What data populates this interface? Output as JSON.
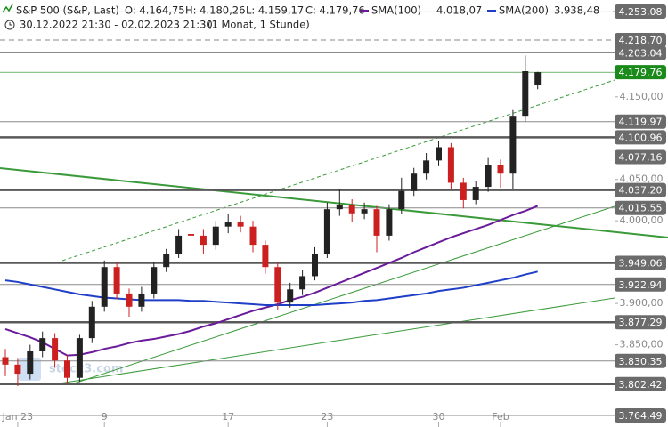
{
  "header": {
    "symbol": "S&P 500 (S&P, Last)",
    "open": "O: 4.164,75",
    "high": "H: 4.180,26",
    "low": "L: 4.159,17",
    "close": "C: 4.179,76",
    "range": "30.12.2022 21:30 - 02.02.2023 21:30",
    "period": "(1 Monat, 1 Stunde)",
    "watermark": "stock3.com"
  },
  "chart_data": {
    "type": "candlestick",
    "categories": [
      null,
      "Jan 23",
      null,
      null,
      null,
      null,
      null,
      null,
      "9",
      null,
      null,
      null,
      null,
      null,
      null,
      null,
      null,
      null,
      "17",
      null,
      null,
      null,
      null,
      null,
      null,
      null,
      "23",
      null,
      null,
      null,
      null,
      null,
      null,
      null,
      null,
      "30",
      null,
      null,
      null,
      null,
      "Feb",
      null,
      null,
      null
    ],
    "open": [
      3835,
      3826,
      3815,
      3842,
      3858,
      3831,
      3810,
      3858,
      3896,
      3944,
      3912,
      3896,
      3912,
      3944,
      3960,
      3984,
      3982,
      3971,
      3993,
      3998,
      3993,
      3971,
      3944,
      3901,
      3917,
      3933,
      3960,
      4014,
      4019,
      4009,
      4014,
      3982,
      4014,
      4036,
      4057,
      4073,
      4089,
      4046,
      4025,
      4041,
      4068,
      4057,
      4127,
      4164.75
    ],
    "high": [
      3845,
      3834,
      3850,
      3866,
      3864,
      3838,
      3862,
      3903,
      3952,
      3950,
      3918,
      3920,
      3950,
      3966,
      3990,
      3993,
      3990,
      4000,
      4008,
      4006,
      4000,
      3976,
      3950,
      3925,
      3940,
      3968,
      4022,
      4038,
      4026,
      4022,
      4018,
      4020,
      4052,
      4064,
      4082,
      4096,
      4094,
      4052,
      4048,
      4076,
      4074,
      4134,
      4200,
      4180.26
    ],
    "low": [
      3812,
      3800,
      3808,
      3835,
      3822,
      3802,
      3805,
      3852,
      3890,
      3905,
      3884,
      3890,
      3906,
      3938,
      3955,
      3972,
      3960,
      3965,
      3985,
      3986,
      3962,
      3936,
      3892,
      3895,
      3910,
      3928,
      3955,
      4006,
      3998,
      4002,
      3962,
      3976,
      4008,
      4030,
      4050,
      4066,
      4038,
      4015,
      4020,
      4035,
      4040,
      4038,
      4120,
      4159.17
    ],
    "close": [
      3826,
      3815,
      3842,
      3858,
      3831,
      3810,
      3858,
      3896,
      3944,
      3912,
      3896,
      3912,
      3944,
      3960,
      3982,
      3982,
      3971,
      3993,
      3998,
      3993,
      3971,
      3944,
      3901,
      3917,
      3933,
      3960,
      4014,
      4019,
      4009,
      4014,
      3982,
      4014,
      4036,
      4057,
      4073,
      4089,
      4046,
      4025,
      4041,
      4068,
      4057,
      4127,
      4181,
      4179.76
    ],
    "up_color": "#222222",
    "down_color": "#cc2020",
    "series": [
      {
        "name": "SMA(100)",
        "color": "#6a1b9a",
        "legend_value": "4.018,07",
        "values": [
          3869,
          3864,
          3859,
          3853,
          3845,
          3837,
          3838,
          3841,
          3845,
          3848,
          3852,
          3855,
          3857,
          3860,
          3863,
          3867,
          3872,
          3876,
          3881,
          3886,
          3891,
          3895,
          3899,
          3904,
          3908,
          3913,
          3919,
          3925,
          3931,
          3937,
          3943,
          3949,
          3955,
          3962,
          3968,
          3974,
          3980,
          3985,
          3990,
          3995,
          4001,
          4007,
          4012,
          4018.07
        ]
      },
      {
        "name": "SMA(200)",
        "color": "#1f3fc8",
        "legend_value": "3.938,48",
        "values": [
          3928,
          3926,
          3923,
          3920,
          3917,
          3914,
          3911,
          3909,
          3907,
          3906,
          3905,
          3904,
          3904,
          3904,
          3904,
          3903,
          3903,
          3902,
          3901,
          3900,
          3899,
          3898,
          3898,
          3898,
          3898,
          3898,
          3899,
          3900,
          3901,
          3903,
          3904,
          3906,
          3908,
          3910,
          3912,
          3915,
          3917,
          3919,
          3922,
          3925,
          3928,
          3931,
          3935,
          3938.48
        ]
      }
    ],
    "ylim": [
      3750.5,
      4267.1
    ],
    "yticks": [
      {
        "value": 3850,
        "label": "3.850,00"
      },
      {
        "value": 3900,
        "label": "3.900,00"
      },
      {
        "value": 4000,
        "label": "4.000,00"
      },
      {
        "value": 4050,
        "label": "4.050,00"
      },
      {
        "value": 4150,
        "label": "4.150,00"
      }
    ],
    "levels": [
      {
        "value": 4253.08,
        "label": "4.253,08",
        "thick": false
      },
      {
        "value": 4218.7,
        "label": "4.218,70",
        "thick": false,
        "dashed": true
      },
      {
        "value": 4203.04,
        "label": "4.203,04",
        "thick": false
      },
      {
        "value": 4119.97,
        "label": "4.119,97",
        "thick": false
      },
      {
        "value": 4100.96,
        "label": "4.100,96",
        "thick": true
      },
      {
        "value": 4077.16,
        "label": "4.077,16",
        "thick": false
      },
      {
        "value": 4037.2,
        "label": "4.037,20",
        "thick": true
      },
      {
        "value": 4015.55,
        "label": "4.015,55",
        "thick": false
      },
      {
        "value": 3949.06,
        "label": "3.949,06",
        "thick": true
      },
      {
        "value": 3922.94,
        "label": "3.922,94",
        "thick": false
      },
      {
        "value": 3877.29,
        "label": "3.877,29",
        "thick": true
      },
      {
        "value": 3830.35,
        "label": "3.830,35",
        "thick": false
      },
      {
        "value": 3802.42,
        "label": "3.802,42",
        "thick": true
      },
      {
        "value": 3764.49,
        "label": "3.764,49",
        "thick": false
      }
    ],
    "last": {
      "value": 4179.76,
      "label": "4.179,76",
      "color": "#1a8a1a"
    }
  }
}
